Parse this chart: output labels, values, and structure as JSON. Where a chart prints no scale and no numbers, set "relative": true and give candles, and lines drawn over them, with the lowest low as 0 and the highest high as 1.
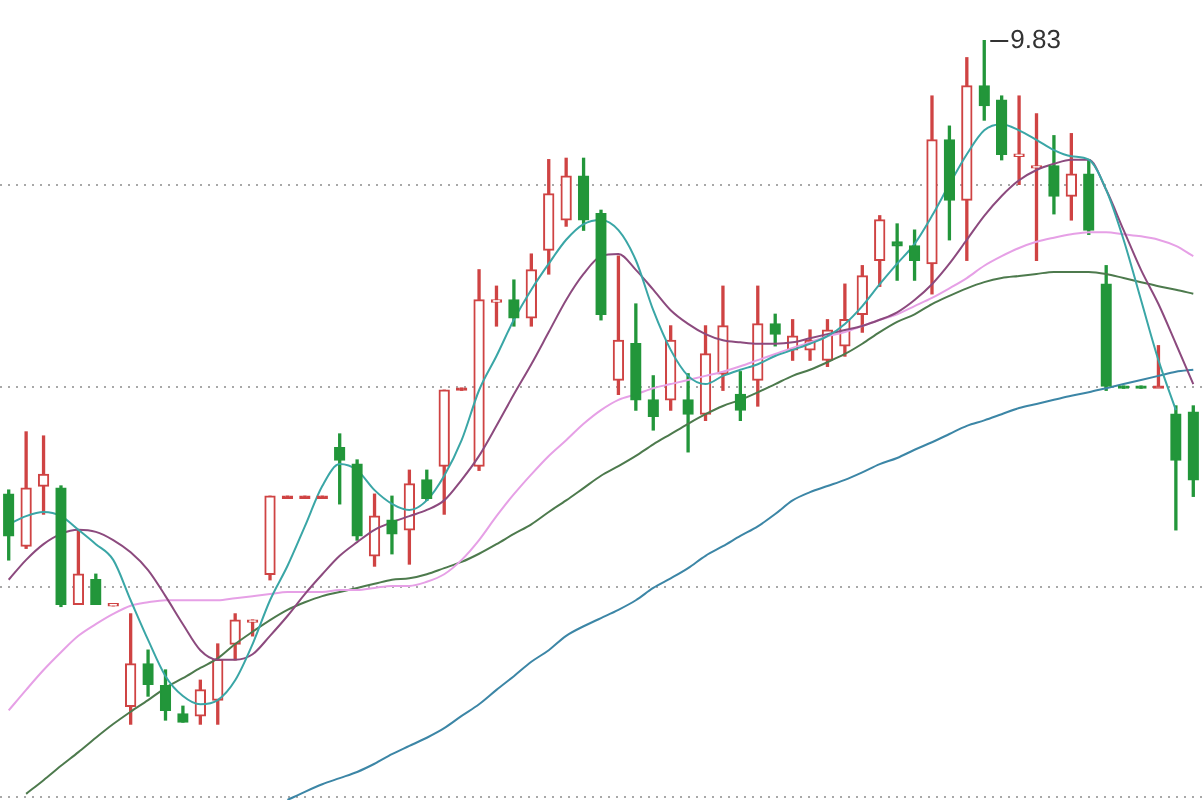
{
  "chart_data": {
    "type": "candlestick",
    "relative": true,
    "legend": false,
    "marker": "none",
    "categories": [
      null,
      null,
      null,
      null,
      null,
      null,
      null,
      null,
      null,
      null,
      null,
      null,
      null,
      null,
      null,
      null,
      null,
      null,
      null,
      null,
      null,
      null,
      null,
      null,
      null,
      null,
      null,
      null,
      null,
      null,
      null,
      null,
      null,
      null,
      null,
      null,
      null,
      null,
      null,
      null,
      null,
      null,
      null,
      null,
      null,
      null,
      null,
      null,
      null,
      null,
      null,
      null,
      null,
      null,
      null,
      null,
      null,
      null,
      null,
      null,
      null,
      null,
      null,
      null,
      null,
      null,
      null,
      null,
      null
    ],
    "ohlc": [
      [
        0.336,
        0.342,
        0.24,
        0.275
      ],
      [
        0.26,
        0.427,
        0.257,
        0.345
      ],
      [
        0.348,
        0.421,
        0.307,
        0.365
      ],
      [
        0.345,
        0.348,
        0.172,
        0.175
      ],
      [
        0.175,
        0.284,
        0.175,
        0.219
      ],
      [
        0.211,
        0.219,
        0.175,
        0.175
      ],
      [
        0.173,
        0.175,
        0.173,
        0.175
      ],
      [
        0.026,
        0.161,
        0.0,
        0.088
      ],
      [
        0.088,
        0.108,
        0.041,
        0.058
      ],
      [
        0.056,
        0.079,
        0.006,
        0.02
      ],
      [
        0.015,
        0.026,
        0.003,
        0.003
      ],
      [
        0.012,
        0.064,
        0.0,
        0.05
      ],
      [
        0.035,
        0.117,
        0.0,
        0.094
      ],
      [
        0.117,
        0.161,
        0.094,
        0.152
      ],
      [
        0.149,
        0.152,
        0.129,
        0.152
      ],
      [
        0.219,
        0.333,
        0.211,
        0.333
      ],
      [
        0.333,
        0.333,
        0.333,
        0.333
      ],
      [
        0.333,
        0.333,
        0.333,
        0.333
      ],
      [
        0.333,
        0.333,
        0.333,
        0.333
      ],
      [
        0.404,
        0.424,
        0.322,
        0.386
      ],
      [
        0.38,
        0.386,
        0.269,
        0.275
      ],
      [
        0.246,
        0.336,
        0.231,
        0.304
      ],
      [
        0.298,
        0.333,
        0.249,
        0.278
      ],
      [
        0.284,
        0.371,
        0.234,
        0.351
      ],
      [
        0.357,
        0.371,
        0.327,
        0.33
      ],
      [
        0.377,
        0.488,
        0.307,
        0.488
      ],
      [
        0.491,
        0.491,
        0.491,
        0.491
      ],
      [
        0.377,
        0.664,
        0.371,
        0.62
      ],
      [
        0.617,
        0.64,
        0.582,
        0.62
      ],
      [
        0.62,
        0.649,
        0.582,
        0.594
      ],
      [
        0.594,
        0.687,
        0.582,
        0.664
      ],
      [
        0.693,
        0.825,
        0.658,
        0.775
      ],
      [
        0.737,
        0.827,
        0.728,
        0.801
      ],
      [
        0.801,
        0.827,
        0.722,
        0.737
      ],
      [
        0.746,
        0.751,
        0.591,
        0.599
      ],
      [
        0.503,
        0.684,
        0.482,
        0.561
      ],
      [
        0.556,
        0.614,
        0.459,
        0.474
      ],
      [
        0.474,
        0.509,
        0.43,
        0.45
      ],
      [
        0.474,
        0.582,
        0.459,
        0.561
      ],
      [
        0.474,
        0.512,
        0.398,
        0.453
      ],
      [
        0.453,
        0.582,
        0.444,
        0.541
      ],
      [
        0.512,
        0.64,
        0.488,
        0.582
      ],
      [
        0.482,
        0.515,
        0.444,
        0.459
      ],
      [
        0.503,
        0.64,
        0.465,
        0.585
      ],
      [
        0.585,
        0.599,
        0.553,
        0.57
      ],
      [
        0.547,
        0.591,
        0.532,
        0.567
      ],
      [
        0.547,
        0.576,
        0.532,
        0.561
      ],
      [
        0.532,
        0.591,
        0.523,
        0.576
      ],
      [
        0.553,
        0.643,
        0.538,
        0.591
      ],
      [
        0.599,
        0.67,
        0.573,
        0.655
      ],
      [
        0.678,
        0.743,
        0.64,
        0.737
      ],
      [
        0.705,
        0.731,
        0.649,
        0.699
      ],
      [
        0.699,
        0.722,
        0.649,
        0.678
      ],
      [
        0.673,
        0.918,
        0.629,
        0.854
      ],
      [
        0.854,
        0.874,
        0.708,
        0.766
      ],
      [
        0.766,
        0.974,
        0.678,
        0.933
      ],
      [
        0.933,
        1.0,
        0.883,
        0.904
      ],
      [
        0.912,
        0.918,
        0.825,
        0.833
      ],
      [
        0.83,
        0.918,
        0.789,
        0.833
      ],
      [
        0.813,
        0.892,
        0.678,
        0.816
      ],
      [
        0.816,
        0.86,
        0.746,
        0.772
      ],
      [
        0.772,
        0.863,
        0.737,
        0.804
      ],
      [
        0.804,
        0.825,
        0.716,
        0.722
      ],
      [
        0.643,
        0.67,
        0.488,
        0.494
      ],
      [
        0.494,
        0.494,
        0.494,
        0.494
      ],
      [
        0.494,
        0.494,
        0.494,
        0.494
      ],
      [
        0.494,
        0.553,
        0.494,
        0.494
      ],
      [
        0.453,
        0.465,
        0.284,
        0.386
      ],
      [
        0.456,
        0.465,
        0.333,
        0.357
      ]
    ],
    "colors": [
      "#22963a",
      "#cf4343",
      "#cf4343",
      "#22963a",
      "#cf4343",
      "#22963a",
      "#cf4343",
      "#cf4343",
      "#22963a",
      "#22963a",
      "#22963a",
      "#cf4343",
      "#cf4343",
      "#cf4343",
      "#cf4343",
      "#cf4343",
      "#cf4343",
      "#cf4343",
      "#cf4343",
      "#22963a",
      "#22963a",
      "#cf4343",
      "#22963a",
      "#cf4343",
      "#22963a",
      "#cf4343",
      "#cf4343",
      "#cf4343",
      "#cf4343",
      "#22963a",
      "#cf4343",
      "#cf4343",
      "#cf4343",
      "#22963a",
      "#22963a",
      "#cf4343",
      "#22963a",
      "#22963a",
      "#cf4343",
      "#22963a",
      "#cf4343",
      "#cf4343",
      "#22963a",
      "#cf4343",
      "#22963a",
      "#cf4343",
      "#cf4343",
      "#cf4343",
      "#cf4343",
      "#cf4343",
      "#cf4343",
      "#22963a",
      "#22963a",
      "#cf4343",
      "#22963a",
      "#cf4343",
      "#22963a",
      "#22963a",
      "#cf4343",
      "#cf4343",
      "#22963a",
      "#cf4343",
      "#22963a",
      "#22963a",
      "#22963a",
      "#22963a",
      "#cf4343",
      "#22963a",
      "#22963a"
    ],
    "series": [
      {
        "type": "line",
        "color": "#3aa6a6",
        "values": [
          0.292,
          0.304,
          0.31,
          0.304,
          0.284,
          0.263,
          0.24,
          0.181,
          0.123,
          0.07,
          0.041,
          0.029,
          0.035,
          0.064,
          0.117,
          0.181,
          0.231,
          0.289,
          0.348,
          0.38,
          0.371,
          0.342,
          0.322,
          0.313,
          0.327,
          0.363,
          0.415,
          0.488,
          0.538,
          0.591,
          0.635,
          0.673,
          0.708,
          0.731,
          0.737,
          0.722,
          0.678,
          0.605,
          0.547,
          0.509,
          0.497,
          0.509,
          0.518,
          0.526,
          0.538,
          0.547,
          0.556,
          0.567,
          0.585,
          0.611,
          0.643,
          0.673,
          0.702,
          0.743,
          0.789,
          0.833,
          0.868,
          0.877,
          0.868,
          0.854,
          0.839,
          0.83,
          0.825,
          0.781,
          0.708,
          0.62,
          0.532,
          0.459,
          null
        ]
      },
      {
        "type": "line",
        "color": "#8c4a7e",
        "values": [
          0.211,
          0.24,
          0.263,
          0.278,
          0.284,
          0.281,
          0.269,
          0.251,
          0.225,
          0.187,
          0.146,
          0.108,
          0.094,
          0.094,
          0.102,
          0.129,
          0.158,
          0.19,
          0.219,
          0.246,
          0.266,
          0.284,
          0.295,
          0.304,
          0.313,
          0.327,
          0.357,
          0.392,
          0.436,
          0.482,
          0.526,
          0.573,
          0.62,
          0.658,
          0.684,
          0.687,
          0.664,
          0.635,
          0.605,
          0.585,
          0.57,
          0.561,
          0.558,
          0.556,
          0.556,
          0.558,
          0.564,
          0.57,
          0.576,
          0.582,
          0.591,
          0.602,
          0.62,
          0.643,
          0.673,
          0.708,
          0.743,
          0.772,
          0.795,
          0.81,
          0.819,
          0.825,
          0.825,
          0.781,
          0.722,
          0.664,
          0.614,
          0.556,
          0.497
        ]
      },
      {
        "type": "line",
        "color": "#e6a0e6",
        "values": [
          0.02,
          0.05,
          0.079,
          0.105,
          0.129,
          0.146,
          0.161,
          0.173,
          0.178,
          0.181,
          0.181,
          0.181,
          0.181,
          0.184,
          0.187,
          0.19,
          0.193,
          0.193,
          0.193,
          0.196,
          0.196,
          0.199,
          0.202,
          0.202,
          0.208,
          0.219,
          0.24,
          0.269,
          0.304,
          0.336,
          0.365,
          0.392,
          0.415,
          0.439,
          0.459,
          0.474,
          0.482,
          0.491,
          0.497,
          0.503,
          0.509,
          0.515,
          0.523,
          0.532,
          0.541,
          0.55,
          0.558,
          0.567,
          0.573,
          0.582,
          0.591,
          0.599,
          0.611,
          0.623,
          0.637,
          0.652,
          0.67,
          0.684,
          0.696,
          0.705,
          0.711,
          0.716,
          0.719,
          0.719,
          0.716,
          0.713,
          0.708,
          0.699,
          0.684
        ]
      },
      {
        "type": "line",
        "color": "#4d7a4d",
        "values": [
          null,
          -0.102,
          -0.082,
          -0.061,
          -0.041,
          -0.02,
          0.0,
          0.018,
          0.035,
          0.053,
          0.067,
          0.082,
          0.096,
          0.117,
          0.135,
          0.152,
          0.167,
          0.178,
          0.187,
          0.193,
          0.199,
          0.205,
          0.211,
          0.213,
          0.219,
          0.228,
          0.237,
          0.249,
          0.263,
          0.278,
          0.292,
          0.31,
          0.327,
          0.345,
          0.363,
          0.377,
          0.392,
          0.409,
          0.424,
          0.439,
          0.453,
          0.465,
          0.474,
          0.485,
          0.497,
          0.509,
          0.518,
          0.529,
          0.541,
          0.556,
          0.573,
          0.588,
          0.599,
          0.614,
          0.626,
          0.637,
          0.646,
          0.652,
          0.655,
          0.658,
          0.661,
          0.661,
          0.661,
          0.658,
          0.652,
          0.646,
          0.64,
          0.635,
          0.629
        ]
      },
      {
        "type": "line",
        "color": "#3c86a6",
        "values": [
          null,
          null,
          null,
          null,
          null,
          null,
          null,
          null,
          null,
          null,
          null,
          null,
          null,
          null,
          null,
          null,
          -0.111,
          -0.099,
          -0.088,
          -0.079,
          -0.07,
          -0.058,
          -0.044,
          -0.032,
          -0.02,
          -0.006,
          0.012,
          0.029,
          0.05,
          0.07,
          0.091,
          0.108,
          0.129,
          0.143,
          0.155,
          0.167,
          0.181,
          0.199,
          0.213,
          0.228,
          0.246,
          0.26,
          0.275,
          0.289,
          0.307,
          0.327,
          0.339,
          0.348,
          0.357,
          0.368,
          0.38,
          0.389,
          0.401,
          0.412,
          0.424,
          0.436,
          0.444,
          0.453,
          0.462,
          0.468,
          0.474,
          0.48,
          0.485,
          0.491,
          0.497,
          0.503,
          0.509,
          0.515,
          0.518
        ]
      }
    ],
    "ref_lines": [
      {
        "axis": "y",
        "value": 0.789,
        "color": "#a8a8a8",
        "line_style": "dotted"
      },
      {
        "axis": "y",
        "value": 0.494,
        "color": "#a8a8a8",
        "line_style": "dotted"
      },
      {
        "axis": "y",
        "value": 0.202,
        "color": "#a8a8a8",
        "line_style": "dotted"
      },
      {
        "axis": "y",
        "value": -0.105,
        "color": "#a8a8a8",
        "line_style": "dotted"
      }
    ],
    "annotations": [
      "9.83"
    ]
  }
}
